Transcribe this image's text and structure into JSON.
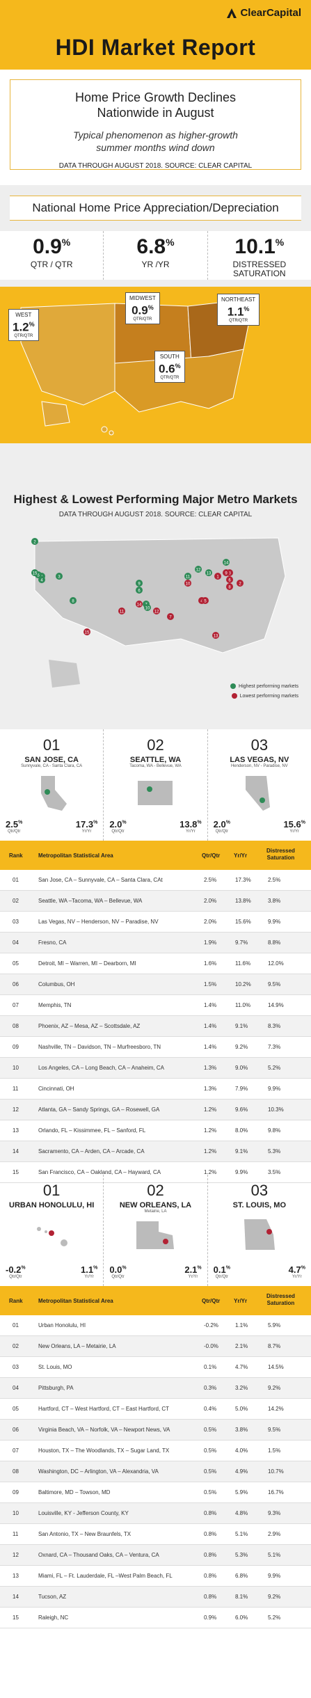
{
  "header": {
    "logo": "ClearCapital",
    "title": "HDI Market Report"
  },
  "intro": {
    "headline1": "Home Price Growth Declines",
    "headline2": "Nationwide in August",
    "sub1": "Typical phenomenon as higher-growth",
    "sub2": "summer months wind down",
    "source": "DATA THROUGH AUGUST 2018. SOURCE: CLEAR CAPITAL"
  },
  "national": {
    "title": "National Home Price Appreciation/Depreciation",
    "stats": [
      {
        "value": "0.9",
        "unit": "%",
        "label1": "QTR / QTR",
        "label2": ""
      },
      {
        "value": "6.8",
        "unit": "%",
        "label1": "YR /YR",
        "label2": ""
      },
      {
        "value": "10.1",
        "unit": "%",
        "label1": "DISTRESSED",
        "label2": "SATURATION"
      }
    ],
    "regions": [
      {
        "name": "WEST",
        "value": "1.2",
        "unit": "%",
        "label": "QTR/QTR"
      },
      {
        "name": "MIDWEST",
        "value": "0.9",
        "unit": "%",
        "label": "QTR/QTR"
      },
      {
        "name": "NORTHEAST",
        "value": "1.1",
        "unit": "%",
        "label": "QTR/QTR"
      },
      {
        "name": "SOUTH",
        "value": "0.6",
        "unit": "%",
        "label": "QTR/QTR"
      }
    ]
  },
  "metros": {
    "title": "Highest & Lowest Performing Major Metro Markets",
    "source": "DATA THROUGH AUGUST 2018. SOURCE: CLEAR CAPITAL",
    "legend_high": "Highest performing markets",
    "legend_low": "Lowest performing markets",
    "color_high": "#2e8b57",
    "color_low": "#b22234",
    "green_markers": [
      "1",
      "2",
      "3",
      "4",
      "5",
      "6",
      "7",
      "8",
      "9",
      "10",
      "11",
      "12",
      "13",
      "14",
      "15"
    ],
    "red_markers": [
      "1",
      "2",
      "3",
      "4",
      "5",
      "6",
      "7",
      "8",
      "9",
      "10",
      "11",
      "12",
      "13",
      "14",
      "15"
    ]
  },
  "top_high": [
    {
      "rank": "01",
      "name": "SAN JOSE, CA",
      "sub": "Sunnyvale, CA - Santa Clara, CA",
      "qtr": "2.5",
      "yr": "17.3",
      "unit": "%",
      "qtr_label": "Qtr/Qtr",
      "yr_label": "Yr/Yr"
    },
    {
      "rank": "02",
      "name": "SEATTLE, WA",
      "sub": "Tacoma, WA - Bellevue, WA",
      "qtr": "2.0",
      "yr": "13.8",
      "unit": "%",
      "qtr_label": "Qtr/Qtr",
      "yr_label": "Yr/Yr"
    },
    {
      "rank": "03",
      "name": "LAS VEGAS, NV",
      "sub": "Henderson, NV - Paradise, NV",
      "qtr": "2.0",
      "yr": "15.6",
      "unit": "%",
      "qtr_label": "Qtr/Qtr",
      "yr_label": "Yr/Yr"
    }
  ],
  "table_headers": {
    "rank": "Rank",
    "msa": "Metropolitan Statistical Area",
    "qtr": "Qtr/Qtr",
    "yr": "Yr/Yr",
    "dist1": "Distressed",
    "dist2": "Saturation"
  },
  "high_table": [
    [
      "01",
      "San Jose, CA – Sunnyvale, CA – Santa Clara, CAt",
      "2.5%",
      "17.3%",
      "2.5%"
    ],
    [
      "02",
      "Seattle, WA –Tacoma, WA – Bellevue, WA",
      "2.0%",
      "13.8%",
      "3.8%"
    ],
    [
      "03",
      "Las Vegas, NV – Henderson, NV – Paradise, NV",
      "2.0%",
      "15.6%",
      "9.9%"
    ],
    [
      "04",
      "Fresno, CA",
      "1.9%",
      "9.7%",
      "8.8%"
    ],
    [
      "05",
      "Detroit, MI – Warren, MI – Dearborn, MI",
      "1.6%",
      "11.6%",
      "12.0%"
    ],
    [
      "06",
      "Columbus, OH",
      "1.5%",
      "10.2%",
      "9.5%"
    ],
    [
      "07",
      "Memphis, TN",
      "1.4%",
      "11.0%",
      "14.9%"
    ],
    [
      "08",
      "Phoenix, AZ – Mesa, AZ – Scottsdale, AZ",
      "1.4%",
      "9.1%",
      "8.3%"
    ],
    [
      "09",
      "Nashville, TN – Davidson, TN – Murfreesboro, TN",
      "1.4%",
      "9.2%",
      "7.3%"
    ],
    [
      "10",
      "Los Angeles, CA – Long Beach, CA – Anaheim, CA",
      "1.3%",
      "9.0%",
      "5.2%"
    ],
    [
      "11",
      "Cincinnati, OH",
      "1.3%",
      "7.9%",
      "9.9%"
    ],
    [
      "12",
      "Atlanta, GA – Sandy Springs, GA – Rosewell, GA",
      "1.2%",
      "9.6%",
      "10.3%"
    ],
    [
      "13",
      "Orlando, FL – Kissimmee, FL – Sanford, FL",
      "1.2%",
      "8.0%",
      "9.8%"
    ],
    [
      "14",
      "Sacramento, CA – Arden, CA – Arcade, CA",
      "1.2%",
      "9.1%",
      "5.3%"
    ],
    [
      "15",
      "San Francisco, CA – Oakland, CA – Hayward, CA",
      "1.2%",
      "9.9%",
      "3.5%"
    ]
  ],
  "top_low": [
    {
      "rank": "01",
      "name": "URBAN HONOLULU, HI",
      "sub": "",
      "qtr": "-0.2",
      "yr": "1.1",
      "unit": "%",
      "qtr_label": "Qtr/Qtr",
      "yr_label": "Yr/Yr"
    },
    {
      "rank": "02",
      "name": "NEW ORLEANS, LA",
      "sub": "Metairie, LA",
      "qtr": "0.0",
      "yr": "2.1",
      "unit": "%",
      "qtr_label": "Qtr/Qtr",
      "yr_label": "Yr/Yr"
    },
    {
      "rank": "03",
      "name": "ST. LOUIS, MO",
      "sub": "",
      "qtr": "0.1",
      "yr": "4.7",
      "unit": "%",
      "qtr_label": "Qtr/Qtr",
      "yr_label": "Yr/Yr"
    }
  ],
  "low_table": [
    [
      "01",
      "Urban Honolulu, HI",
      "-0.2%",
      "1.1%",
      "5.9%"
    ],
    [
      "02",
      "New Orleans, LA – Metairie, LA",
      "-0.0%",
      "2.1%",
      "8.7%"
    ],
    [
      "03",
      "St. Louis, MO",
      "0.1%",
      "4.7%",
      "14.5%"
    ],
    [
      "04",
      "Pittsburgh, PA",
      "0.3%",
      "3.2%",
      "9.2%"
    ],
    [
      "05",
      "Hartford, CT – West Hartford, CT – East Hartford, CT",
      "0.4%",
      "5.0%",
      "14.2%"
    ],
    [
      "06",
      "Virginia Beach, VA – Norfolk, VA – Newport News, VA",
      "0.5%",
      "3.8%",
      "9.5%"
    ],
    [
      "07",
      "Houston, TX – The Woodlands, TX – Sugar Land, TX",
      "0.5%",
      "4.0%",
      "1.5%"
    ],
    [
      "08",
      "Washington, DC – Arlington, VA – Alexandria, VA",
      "0.5%",
      "4.9%",
      "10.7%"
    ],
    [
      "09",
      "Baltimore, MD – Towson, MD",
      "0.5%",
      "5.9%",
      "16.7%"
    ],
    [
      "10",
      "Louisville, KY - Jefferson County, KY",
      "0.8%",
      "4.8%",
      "9.3%"
    ],
    [
      "11",
      "San Antonio, TX – New Braunfels, TX",
      "0.8%",
      "5.1%",
      "2.9%"
    ],
    [
      "12",
      "Oxnard, CA – Thousand Oaks, CA – Ventura, CA",
      "0.8%",
      "5.3%",
      "5.1%"
    ],
    [
      "13",
      "Miami, FL – Ft. Lauderdale, FL –West Palm Beach, FL",
      "0.8%",
      "6.8%",
      "9.9%"
    ],
    [
      "14",
      "Tucson, AZ",
      "0.8%",
      "8.1%",
      "9.2%"
    ],
    [
      "15",
      "Raleigh, NC",
      "0.9%",
      "6.0%",
      "5.2%"
    ]
  ]
}
